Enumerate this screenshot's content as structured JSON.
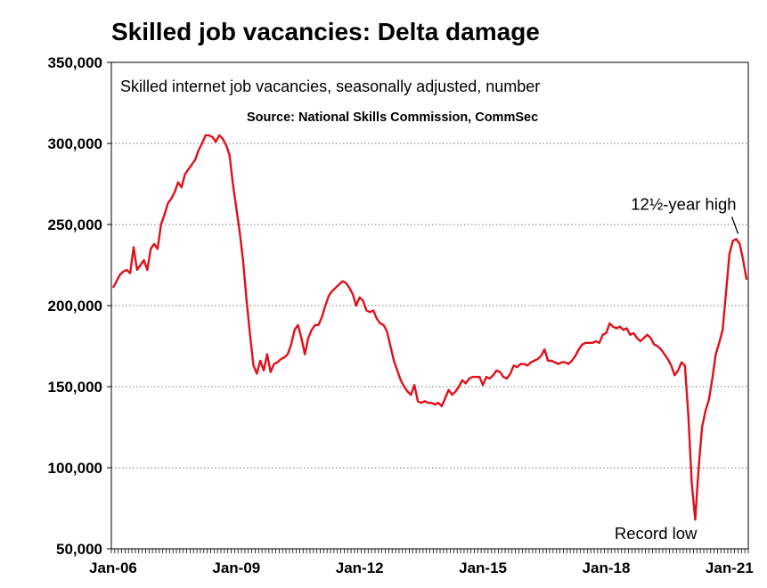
{
  "chart_data": {
    "type": "line",
    "title": "Skilled job vacancies: Delta damage",
    "subtitle": "Skilled internet job vacancies, seasonally adjusted, number",
    "source": "Source: National Skills Commission, CommSec",
    "xlabel": "",
    "ylabel": "",
    "x_start": "Jan-06",
    "x_end": "Sep-21",
    "frequency": "monthly",
    "x_ticks": [
      "Jan-06",
      "Jan-09",
      "Jan-12",
      "Jan-15",
      "Jan-18",
      "Jan-21"
    ],
    "ylim": [
      50000,
      350000
    ],
    "y_ticks": [
      50000,
      100000,
      150000,
      200000,
      250000,
      300000,
      350000
    ],
    "y_tick_labels": [
      "50,000",
      "100,000",
      "150,000",
      "200,000",
      "250,000",
      "300,000",
      "350,000"
    ],
    "grid": "horizontal dotted",
    "legend": "none",
    "line_color": "#e0101a",
    "series": [
      {
        "values": [
          211000,
          215000,
          219000,
          221000,
          222000,
          220000,
          236000,
          222000,
          225000,
          228000,
          222000,
          235000,
          238000,
          235000,
          250000,
          256000,
          263000,
          266000,
          270000,
          276000,
          273000,
          281000,
          284000,
          287000,
          290000,
          296000,
          300000,
          305000,
          305000,
          304000,
          301000,
          305000,
          303000,
          299000,
          293000,
          275000,
          260000,
          245000,
          227000,
          203000,
          182000,
          163000,
          158000,
          166000,
          160000,
          170000,
          159000,
          164000,
          165000,
          167000,
          168000,
          170000,
          176000,
          185000,
          188000,
          180000,
          170000,
          180000,
          185000,
          188000,
          188000,
          193000,
          200000,
          206000,
          209000,
          211000,
          213000,
          215000,
          214000,
          211000,
          207000,
          200000,
          205000,
          203000,
          197000,
          196000,
          197000,
          192000,
          189000,
          188000,
          184000,
          175000,
          166000,
          160000,
          154000,
          150000,
          147000,
          145000,
          151000,
          141000,
          140000,
          141000,
          140000,
          140000,
          139000,
          140000,
          138000,
          143000,
          148000,
          145000,
          147000,
          150000,
          154000,
          152000,
          155000,
          156000,
          156000,
          156000,
          151000,
          156000,
          155000,
          157000,
          160000,
          159000,
          156000,
          155000,
          158000,
          163000,
          162000,
          164000,
          164000,
          163000,
          165000,
          166000,
          167000,
          169000,
          173000,
          166000,
          166000,
          165000,
          164000,
          165000,
          165000,
          164000,
          166000,
          169000,
          173000,
          176000,
          177000,
          177000,
          177000,
          178000,
          177000,
          182000,
          183000,
          189000,
          187000,
          186000,
          187000,
          185000,
          186000,
          182000,
          183000,
          180000,
          178000,
          180000,
          182000,
          180000,
          176000,
          175000,
          173000,
          170000,
          167000,
          163000,
          157000,
          160000,
          165000,
          163000,
          132000,
          90000,
          68000,
          100000,
          125000,
          135000,
          142000,
          155000,
          170000,
          177000,
          185000,
          208000,
          232000,
          240000,
          241000,
          238000,
          228000,
          216000
        ]
      }
    ],
    "annotations": [
      {
        "text": "12½-year high"
      },
      {
        "text": "Record low"
      }
    ]
  }
}
